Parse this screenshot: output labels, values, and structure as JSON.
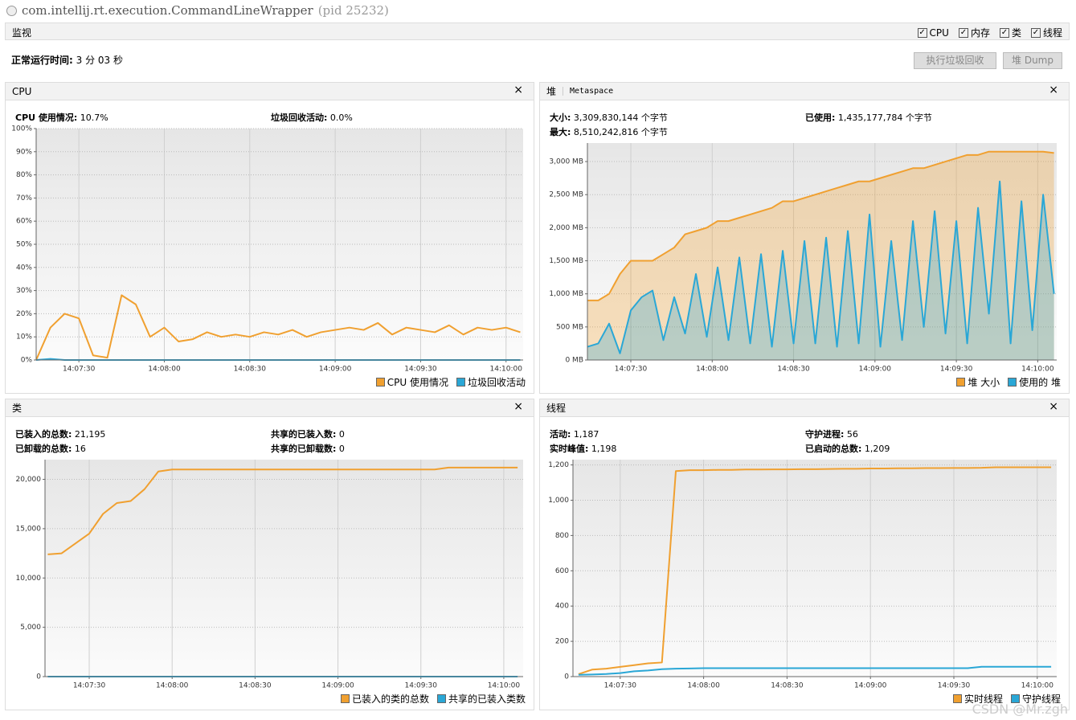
{
  "header": {
    "title": "com.intellij.rt.execution.CommandLineWrapper",
    "pid": "(pid 25232)",
    "tab": "监视",
    "checks": [
      "CPU",
      "内存",
      "类",
      "线程"
    ],
    "uptime_label": "正常运行时间:",
    "uptime": "3 分 03 秒",
    "buttons": [
      "执行垃圾回收",
      "堆 Dump"
    ]
  },
  "panels": [
    {
      "tabs": [
        "CPU"
      ],
      "stats": [
        {
          "label": "CPU 使用情况:",
          "value": "10.7%"
        },
        {
          "label": "垃圾回收活动:",
          "value": "0.0%"
        }
      ]
    },
    {
      "tabs": [
        "堆",
        "Metaspace"
      ],
      "stats": [
        {
          "label": "大小:",
          "value": "3,309,830,144 个字节"
        },
        {
          "label": "已使用:",
          "value": "1,435,177,784 个字节"
        },
        {
          "label": "最大:",
          "value": "8,510,242,816 个字节"
        }
      ]
    },
    {
      "tabs": [
        "类"
      ],
      "stats": [
        {
          "label": "已装入的总数:",
          "value": "21,195"
        },
        {
          "label": "共享的已装入数:",
          "value": "0"
        },
        {
          "label": "已卸载的总数:",
          "value": "16"
        },
        {
          "label": "共享的已卸载数:",
          "value": "0"
        }
      ]
    },
    {
      "tabs": [
        "线程"
      ],
      "stats": [
        {
          "label": "活动:",
          "value": "1,187"
        },
        {
          "label": "守护进程:",
          "value": "56"
        },
        {
          "label": "实时峰值:",
          "value": "1,198"
        },
        {
          "label": "已启动的总数:",
          "value": "1,209"
        }
      ]
    }
  ],
  "chart_data": [
    {
      "type": "line",
      "grid": true,
      "xlim": [
        "14:07:15",
        "14:10:06"
      ],
      "xticks": [
        "14:07:30",
        "14:08:00",
        "14:08:30",
        "14:09:00",
        "14:09:30",
        "14:10:00"
      ],
      "ylim": [
        0,
        100
      ],
      "yticks": [
        {
          "value": 0,
          "label": "0%"
        },
        {
          "value": 10,
          "label": "10%"
        },
        {
          "value": 20,
          "label": "20%"
        },
        {
          "value": 30,
          "label": "30%"
        },
        {
          "value": 40,
          "label": "40%"
        },
        {
          "value": 50,
          "label": "50%"
        },
        {
          "value": 60,
          "label": "60%"
        },
        {
          "value": 70,
          "label": "70%"
        },
        {
          "value": 80,
          "label": "80%"
        },
        {
          "value": 90,
          "label": "90%"
        },
        {
          "value": 100,
          "label": "100%"
        }
      ],
      "x": [
        "14:07:15",
        "14:07:20",
        "14:07:25",
        "14:07:30",
        "14:07:35",
        "14:07:40",
        "14:07:45",
        "14:07:50",
        "14:07:55",
        "14:08:00",
        "14:08:05",
        "14:08:10",
        "14:08:15",
        "14:08:20",
        "14:08:25",
        "14:08:30",
        "14:08:35",
        "14:08:40",
        "14:08:45",
        "14:08:50",
        "14:08:55",
        "14:09:00",
        "14:09:05",
        "14:09:10",
        "14:09:15",
        "14:09:20",
        "14:09:25",
        "14:09:30",
        "14:09:35",
        "14:09:40",
        "14:09:45",
        "14:09:50",
        "14:09:55",
        "14:10:00",
        "14:10:05"
      ],
      "series": [
        {
          "name": "CPU 使用情况",
          "color": "#f0a030",
          "values": [
            0,
            14,
            20,
            18,
            2,
            1,
            28,
            24,
            10,
            14,
            8,
            9,
            12,
            10,
            11,
            10,
            12,
            11,
            13,
            10,
            12,
            13,
            14,
            13,
            16,
            11,
            14,
            13,
            12,
            15,
            11,
            14,
            13,
            14,
            12
          ]
        },
        {
          "name": "垃圾回收活动",
          "color": "#2aa7d6",
          "values": [
            0,
            0.5,
            0,
            0,
            0,
            0,
            0,
            0,
            0,
            0,
            0,
            0,
            0,
            0,
            0,
            0,
            0,
            0,
            0,
            0,
            0,
            0,
            0,
            0,
            0,
            0,
            0,
            0,
            0,
            0,
            0,
            0,
            0,
            0,
            0
          ]
        }
      ]
    },
    {
      "type": "area",
      "grid": true,
      "xlim": [
        "14:07:14",
        "14:10:07"
      ],
      "xticks": [
        "14:07:30",
        "14:08:00",
        "14:08:30",
        "14:09:00",
        "14:09:30",
        "14:10:00"
      ],
      "ylim": [
        0,
        3280
      ],
      "yticks": [
        {
          "value": 0,
          "label": "0 MB"
        },
        {
          "value": 500,
          "label": "500 MB"
        },
        {
          "value": 1000,
          "label": "1,000 MB"
        },
        {
          "value": 1500,
          "label": "1,500 MB"
        },
        {
          "value": 2000,
          "label": "2,000 MB"
        },
        {
          "value": 2500,
          "label": "2,500 MB"
        },
        {
          "value": 3000,
          "label": "3,000 MB"
        }
      ],
      "x": [
        "14:07:14",
        "14:07:18",
        "14:07:22",
        "14:07:26",
        "14:07:30",
        "14:07:34",
        "14:07:38",
        "14:07:42",
        "14:07:46",
        "14:07:50",
        "14:07:54",
        "14:07:58",
        "14:08:02",
        "14:08:06",
        "14:08:10",
        "14:08:14",
        "14:08:18",
        "14:08:22",
        "14:08:26",
        "14:08:30",
        "14:08:34",
        "14:08:38",
        "14:08:42",
        "14:08:46",
        "14:08:50",
        "14:08:54",
        "14:08:58",
        "14:09:02",
        "14:09:06",
        "14:09:10",
        "14:09:14",
        "14:09:18",
        "14:09:22",
        "14:09:26",
        "14:09:30",
        "14:09:34",
        "14:09:38",
        "14:09:42",
        "14:09:46",
        "14:09:50",
        "14:09:54",
        "14:09:58",
        "14:10:02",
        "14:10:06"
      ],
      "series": [
        {
          "name": "堆 大小",
          "color": "#f0a030",
          "values": [
            900,
            900,
            1000,
            1300,
            1500,
            1500,
            1500,
            1600,
            1700,
            1900,
            1950,
            2000,
            2100,
            2100,
            2150,
            2200,
            2250,
            2300,
            2400,
            2400,
            2450,
            2500,
            2550,
            2600,
            2650,
            2700,
            2700,
            2750,
            2800,
            2850,
            2900,
            2900,
            2950,
            3000,
            3050,
            3100,
            3100,
            3150,
            3150,
            3150,
            3150,
            3150,
            3150,
            3130
          ]
        },
        {
          "name": "使用的 堆",
          "color": "#2aa7d6",
          "values": [
            200,
            250,
            550,
            100,
            750,
            950,
            1050,
            300,
            950,
            400,
            1300,
            350,
            1400,
            300,
            1550,
            250,
            1600,
            200,
            1650,
            250,
            1800,
            250,
            1850,
            200,
            1950,
            250,
            2200,
            200,
            1800,
            300,
            2100,
            500,
            2250,
            400,
            2100,
            250,
            2300,
            700,
            2700,
            250,
            2400,
            450,
            2500,
            1000
          ]
        }
      ]
    },
    {
      "type": "line",
      "grid": true,
      "xlim": [
        "14:07:14",
        "14:10:07"
      ],
      "xticks": [
        "14:07:30",
        "14:08:00",
        "14:08:30",
        "14:09:00",
        "14:09:30",
        "14:10:00"
      ],
      "ylim": [
        0,
        22000
      ],
      "yticks": [
        0,
        {
          "value": 5000,
          "label": "5,000"
        },
        {
          "value": 10000,
          "label": "10,000"
        },
        {
          "value": 15000,
          "label": "15,000"
        },
        {
          "value": 20000,
          "label": "20,000"
        }
      ],
      "x": [
        "14:07:15",
        "14:07:20",
        "14:07:25",
        "14:07:30",
        "14:07:35",
        "14:07:40",
        "14:07:45",
        "14:07:50",
        "14:07:55",
        "14:08:00",
        "14:08:05",
        "14:08:10",
        "14:08:15",
        "14:08:20",
        "14:08:25",
        "14:08:30",
        "14:08:35",
        "14:08:40",
        "14:08:45",
        "14:08:50",
        "14:08:55",
        "14:09:00",
        "14:09:05",
        "14:09:10",
        "14:09:15",
        "14:09:20",
        "14:09:25",
        "14:09:30",
        "14:09:35",
        "14:09:40",
        "14:09:45",
        "14:09:50",
        "14:09:55",
        "14:10:00",
        "14:10:05"
      ],
      "series": [
        {
          "name": "已装入的类的总数",
          "color": "#f0a030",
          "values": [
            12400,
            12500,
            13500,
            14500,
            16500,
            17600,
            17800,
            19000,
            20800,
            21000,
            21000,
            21000,
            21000,
            21000,
            21000,
            21000,
            21000,
            21000,
            21000,
            21000,
            21000,
            21000,
            21000,
            21000,
            21000,
            21000,
            21000,
            21000,
            21000,
            21195,
            21195,
            21195,
            21195,
            21195,
            21195
          ]
        },
        {
          "name": "共享的已装入类数",
          "color": "#2aa7d6",
          "values": [
            0,
            0,
            0,
            0,
            0,
            0,
            0,
            0,
            0,
            0,
            0,
            0,
            0,
            0,
            0,
            0,
            0,
            0,
            0,
            0,
            0,
            0,
            0,
            0,
            0,
            0,
            0,
            0,
            0,
            0,
            0,
            0,
            0,
            0,
            0
          ]
        }
      ]
    },
    {
      "type": "line",
      "grid": true,
      "xlim": [
        "14:07:13",
        "14:10:07"
      ],
      "xticks": [
        "14:07:30",
        "14:08:00",
        "14:08:30",
        "14:09:00",
        "14:09:30",
        "14:10:00"
      ],
      "ylim": [
        0,
        1230
      ],
      "yticks": [
        0,
        200,
        400,
        600,
        800,
        {
          "value": 1000,
          "label": "1,000"
        },
        {
          "value": 1200,
          "label": "1,200"
        }
      ],
      "x": [
        "14:07:15",
        "14:07:20",
        "14:07:25",
        "14:07:30",
        "14:07:35",
        "14:07:40",
        "14:07:45",
        "14:07:50",
        "14:07:55",
        "14:08:00",
        "14:08:05",
        "14:08:10",
        "14:08:15",
        "14:08:20",
        "14:08:25",
        "14:08:30",
        "14:08:35",
        "14:08:40",
        "14:08:45",
        "14:08:50",
        "14:08:55",
        "14:09:00",
        "14:09:05",
        "14:09:10",
        "14:09:15",
        "14:09:20",
        "14:09:25",
        "14:09:30",
        "14:09:35",
        "14:09:40",
        "14:09:45",
        "14:09:50",
        "14:09:55",
        "14:10:00",
        "14:10:05"
      ],
      "series": [
        {
          "name": "实时线程",
          "color": "#f0a030",
          "values": [
            14,
            40,
            45,
            55,
            65,
            75,
            80,
            1165,
            1170,
            1170,
            1172,
            1172,
            1174,
            1174,
            1175,
            1175,
            1176,
            1176,
            1177,
            1178,
            1178,
            1180,
            1180,
            1181,
            1181,
            1182,
            1182,
            1183,
            1183,
            1184,
            1187,
            1187,
            1187,
            1187,
            1187
          ]
        },
        {
          "name": "守护线程",
          "color": "#2aa7d6",
          "values": [
            10,
            12,
            15,
            20,
            30,
            35,
            42,
            45,
            46,
            48,
            48,
            48,
            48,
            48,
            48,
            48,
            48,
            48,
            48,
            48,
            48,
            48,
            48,
            48,
            48,
            48,
            48,
            48,
            48,
            56,
            56,
            56,
            56,
            56,
            56
          ]
        }
      ]
    }
  ],
  "watermark": "CSDN @Mr.zgh"
}
